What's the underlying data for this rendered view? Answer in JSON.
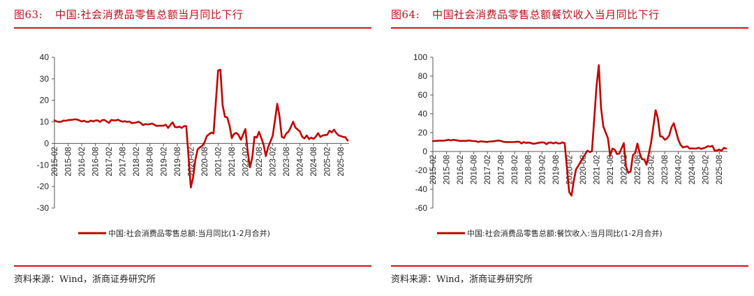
{
  "colors": {
    "accent": "#b5121b",
    "rule": "#d0101a",
    "series": "#c00000",
    "axis": "#555555"
  },
  "figures": [
    {
      "id": "fig63",
      "number": "图63:",
      "title": "中国:社会消费品零售总额当月同比下行",
      "source": "资料来源：Wind，浙商证券研究所",
      "legend": "中国:社会消费品零售总额:当月同比(1-2月合并)"
    },
    {
      "id": "fig64",
      "number": "图64:",
      "title": "中国社会消费品零售总额餐饮收入当月同比下行",
      "source": "资料来源：Wind，浙商证券研究所",
      "legend": "中国:社会消费品零售总额:餐饮收入:当月同比(1-2月合并)"
    }
  ],
  "chart_data": [
    {
      "type": "line",
      "title": "中国:社会消费品零售总额当月同比下行",
      "xlabel": "",
      "ylabel": "",
      "ylim": [
        -30,
        40
      ],
      "yticks": [
        40,
        30,
        20,
        10,
        0,
        -10,
        -20,
        -30
      ],
      "xticks": [
        "2015-02",
        "2015-08",
        "2016-02",
        "2016-08",
        "2017-02",
        "2017-08",
        "2018-02",
        "2018-08",
        "2019-02",
        "2019-08",
        "2020-02",
        "2020-08",
        "2021-02",
        "2021-08",
        "2022-02",
        "2022-08",
        "2023-02",
        "2023-08",
        "2024-02",
        "2024-08",
        "2025-02",
        "2025-08"
      ],
      "grid": false,
      "legend_position": "bottom",
      "series": [
        {
          "name": "中国:社会消费品零售总额:当月同比(1-2月合并)",
          "points": [
            [
              "2015-02",
              10.7
            ],
            [
              "2015-03",
              10.2
            ],
            [
              "2015-04",
              10.0
            ],
            [
              "2015-05",
              10.1
            ],
            [
              "2015-06",
              10.6
            ],
            [
              "2015-07",
              10.5
            ],
            [
              "2015-08",
              10.8
            ],
            [
              "2015-09",
              10.9
            ],
            [
              "2015-10",
              11.0
            ],
            [
              "2015-11",
              11.2
            ],
            [
              "2015-12",
              11.1
            ],
            [
              "2016-02",
              10.2
            ],
            [
              "2016-03",
              10.5
            ],
            [
              "2016-04",
              10.1
            ],
            [
              "2016-05",
              10.0
            ],
            [
              "2016-06",
              10.6
            ],
            [
              "2016-07",
              10.2
            ],
            [
              "2016-08",
              10.6
            ],
            [
              "2016-09",
              10.7
            ],
            [
              "2016-10",
              10.0
            ],
            [
              "2016-11",
              10.8
            ],
            [
              "2016-12",
              10.9
            ],
            [
              "2017-02",
              9.5
            ],
            [
              "2017-03",
              10.9
            ],
            [
              "2017-04",
              10.7
            ],
            [
              "2017-05",
              10.7
            ],
            [
              "2017-06",
              11.0
            ],
            [
              "2017-07",
              10.4
            ],
            [
              "2017-08",
              10.1
            ],
            [
              "2017-09",
              10.3
            ],
            [
              "2017-10",
              10.0
            ],
            [
              "2017-11",
              10.2
            ],
            [
              "2017-12",
              9.4
            ],
            [
              "2018-02",
              9.7
            ],
            [
              "2018-03",
              10.1
            ],
            [
              "2018-04",
              9.4
            ],
            [
              "2018-05",
              8.5
            ],
            [
              "2018-06",
              9.0
            ],
            [
              "2018-07",
              8.8
            ],
            [
              "2018-08",
              9.0
            ],
            [
              "2018-09",
              9.2
            ],
            [
              "2018-10",
              8.6
            ],
            [
              "2018-11",
              8.1
            ],
            [
              "2018-12",
              8.2
            ],
            [
              "2019-02",
              8.2
            ],
            [
              "2019-03",
              8.7
            ],
            [
              "2019-04",
              7.2
            ],
            [
              "2019-05",
              8.6
            ],
            [
              "2019-06",
              9.8
            ],
            [
              "2019-07",
              7.6
            ],
            [
              "2019-08",
              7.5
            ],
            [
              "2019-09",
              7.8
            ],
            [
              "2019-10",
              7.2
            ],
            [
              "2019-11",
              8.0
            ],
            [
              "2019-12",
              8.0
            ],
            [
              "2020-02",
              -20.5
            ],
            [
              "2020-03",
              -15.8
            ],
            [
              "2020-04",
              -7.5
            ],
            [
              "2020-05",
              -2.8
            ],
            [
              "2020-06",
              -1.8
            ],
            [
              "2020-07",
              -1.1
            ],
            [
              "2020-08",
              0.5
            ],
            [
              "2020-09",
              3.3
            ],
            [
              "2020-10",
              4.3
            ],
            [
              "2020-11",
              5.0
            ],
            [
              "2020-12",
              4.6
            ],
            [
              "2021-02",
              33.8
            ],
            [
              "2021-03",
              34.2
            ],
            [
              "2021-04",
              17.7
            ],
            [
              "2021-05",
              12.4
            ],
            [
              "2021-06",
              12.1
            ],
            [
              "2021-07",
              8.5
            ],
            [
              "2021-08",
              2.5
            ],
            [
              "2021-09",
              4.4
            ],
            [
              "2021-10",
              4.9
            ],
            [
              "2021-11",
              3.9
            ],
            [
              "2021-12",
              1.7
            ],
            [
              "2022-02",
              6.7
            ],
            [
              "2022-03",
              -3.5
            ],
            [
              "2022-04",
              -11.1
            ],
            [
              "2022-05",
              -6.7
            ],
            [
              "2022-06",
              3.1
            ],
            [
              "2022-07",
              2.7
            ],
            [
              "2022-08",
              5.4
            ],
            [
              "2022-09",
              2.5
            ],
            [
              "2022-10",
              -0.5
            ],
            [
              "2022-11",
              -5.9
            ],
            [
              "2022-12",
              -1.8
            ],
            [
              "2023-02",
              3.5
            ],
            [
              "2023-03",
              10.6
            ],
            [
              "2023-04",
              18.4
            ],
            [
              "2023-05",
              12.7
            ],
            [
              "2023-06",
              3.1
            ],
            [
              "2023-07",
              2.5
            ],
            [
              "2023-08",
              4.6
            ],
            [
              "2023-09",
              5.5
            ],
            [
              "2023-10",
              7.6
            ],
            [
              "2023-11",
              10.1
            ],
            [
              "2023-12",
              7.4
            ],
            [
              "2024-02",
              5.5
            ],
            [
              "2024-03",
              3.1
            ],
            [
              "2024-04",
              2.3
            ],
            [
              "2024-05",
              3.7
            ],
            [
              "2024-06",
              2.0
            ],
            [
              "2024-07",
              2.7
            ],
            [
              "2024-08",
              2.1
            ],
            [
              "2024-09",
              3.2
            ],
            [
              "2024-10",
              4.8
            ],
            [
              "2024-11",
              3.0
            ],
            [
              "2024-12",
              3.7
            ],
            [
              "2025-02",
              4.0
            ],
            [
              "2025-03",
              5.9
            ],
            [
              "2025-04",
              5.1
            ],
            [
              "2025-05",
              6.4
            ],
            [
              "2025-06",
              4.8
            ],
            [
              "2025-07",
              3.7
            ],
            [
              "2025-08",
              3.4
            ],
            [
              "2025-09",
              3.0
            ],
            [
              "2025-10",
              2.9
            ],
            [
              "2025-11",
              1.3
            ]
          ]
        }
      ]
    },
    {
      "type": "line",
      "title": "中国社会消费品零售总额餐饮收入当月同比下行",
      "xlabel": "",
      "ylabel": "",
      "ylim": [
        -60,
        100
      ],
      "yticks": [
        100,
        80,
        60,
        40,
        20,
        0,
        -20,
        -40,
        -60
      ],
      "xticks": [
        "2015-02",
        "2015-08",
        "2016-02",
        "2016-08",
        "2017-02",
        "2017-08",
        "2018-02",
        "2018-08",
        "2019-02",
        "2019-08",
        "2020-02",
        "2020-08",
        "2021-02",
        "2021-08",
        "2022-02",
        "2022-08",
        "2023-02",
        "2023-08",
        "2024-02",
        "2024-08",
        "2025-02",
        "2025-08"
      ],
      "grid": false,
      "legend_position": "bottom",
      "series": [
        {
          "name": "中国:社会消费品零售总额:餐饮收入:当月同比(1-2月合并)",
          "points": [
            [
              "2015-02",
              11.1
            ],
            [
              "2015-03",
              11.2
            ],
            [
              "2015-04",
              11.3
            ],
            [
              "2015-05",
              11.5
            ],
            [
              "2015-06",
              11.4
            ],
            [
              "2015-07",
              11.5
            ],
            [
              "2015-08",
              12.0
            ],
            [
              "2015-09",
              12.4
            ],
            [
              "2015-10",
              11.8
            ],
            [
              "2015-11",
              12.4
            ],
            [
              "2015-12",
              12.1
            ],
            [
              "2016-02",
              11.1
            ],
            [
              "2016-03",
              11.3
            ],
            [
              "2016-04",
              11.2
            ],
            [
              "2016-05",
              11.4
            ],
            [
              "2016-06",
              11.7
            ],
            [
              "2016-07",
              11.2
            ],
            [
              "2016-08",
              11.1
            ],
            [
              "2016-09",
              10.9
            ],
            [
              "2016-10",
              10.1
            ],
            [
              "2016-11",
              10.8
            ],
            [
              "2016-12",
              10.6
            ],
            [
              "2017-02",
              10.1
            ],
            [
              "2017-03",
              10.6
            ],
            [
              "2017-04",
              10.7
            ],
            [
              "2017-05",
              11.0
            ],
            [
              "2017-06",
              11.3
            ],
            [
              "2017-07",
              11.6
            ],
            [
              "2017-08",
              11.2
            ],
            [
              "2017-09",
              10.3
            ],
            [
              "2017-10",
              10.0
            ],
            [
              "2017-11",
              10.1
            ],
            [
              "2017-12",
              10.0
            ],
            [
              "2018-02",
              10.1
            ],
            [
              "2018-03",
              10.3
            ],
            [
              "2018-04",
              10.4
            ],
            [
              "2018-05",
              8.6
            ],
            [
              "2018-06",
              10.0
            ],
            [
              "2018-07",
              9.1
            ],
            [
              "2018-08",
              9.5
            ],
            [
              "2018-09",
              9.1
            ],
            [
              "2018-10",
              8.2
            ],
            [
              "2018-11",
              8.4
            ],
            [
              "2018-12",
              9.0
            ],
            [
              "2019-02",
              9.7
            ],
            [
              "2019-03",
              9.5
            ],
            [
              "2019-04",
              7.7
            ],
            [
              "2019-05",
              9.4
            ],
            [
              "2019-06",
              9.5
            ],
            [
              "2019-07",
              8.6
            ],
            [
              "2019-08",
              9.6
            ],
            [
              "2019-09",
              8.7
            ],
            [
              "2019-10",
              8.6
            ],
            [
              "2019-11",
              9.6
            ],
            [
              "2019-12",
              8.9
            ],
            [
              "2020-02",
              -43.1
            ],
            [
              "2020-03",
              -46.8
            ],
            [
              "2020-04",
              -31.1
            ],
            [
              "2020-05",
              -18.9
            ],
            [
              "2020-06",
              -15.2
            ],
            [
              "2020-07",
              -11.0
            ],
            [
              "2020-08",
              -7.0
            ],
            [
              "2020-09",
              -2.9
            ],
            [
              "2020-10",
              0.8
            ],
            [
              "2020-11",
              -0.6
            ],
            [
              "2020-12",
              0.4
            ],
            [
              "2021-02",
              68.9
            ],
            [
              "2021-03",
              91.6
            ],
            [
              "2021-04",
              46.4
            ],
            [
              "2021-05",
              26.6
            ],
            [
              "2021-06",
              20.4
            ],
            [
              "2021-07",
              14.3
            ],
            [
              "2021-08",
              -4.5
            ],
            [
              "2021-09",
              3.1
            ],
            [
              "2021-10",
              2.0
            ],
            [
              "2021-11",
              -2.7
            ],
            [
              "2021-12",
              -2.3
            ],
            [
              "2022-02",
              8.9
            ],
            [
              "2022-03",
              -16.4
            ],
            [
              "2022-04",
              -22.7
            ],
            [
              "2022-05",
              -21.1
            ],
            [
              "2022-06",
              -4.0
            ],
            [
              "2022-07",
              -1.5
            ],
            [
              "2022-08",
              8.4
            ],
            [
              "2022-09",
              -1.7
            ],
            [
              "2022-10",
              -8.1
            ],
            [
              "2022-11",
              -8.4
            ],
            [
              "2022-12",
              -14.1
            ],
            [
              "2023-02",
              9.2
            ],
            [
              "2023-03",
              26.3
            ],
            [
              "2023-04",
              43.8
            ],
            [
              "2023-05",
              35.1
            ],
            [
              "2023-06",
              16.1
            ],
            [
              "2023-07",
              15.8
            ],
            [
              "2023-08",
              12.4
            ],
            [
              "2023-09",
              13.8
            ],
            [
              "2023-10",
              17.1
            ],
            [
              "2023-11",
              25.8
            ],
            [
              "2023-12",
              30.0
            ],
            [
              "2024-02",
              12.5
            ],
            [
              "2024-03",
              6.9
            ],
            [
              "2024-04",
              4.4
            ],
            [
              "2024-05",
              5.0
            ],
            [
              "2024-06",
              5.4
            ],
            [
              "2024-07",
              3.0
            ],
            [
              "2024-08",
              3.3
            ],
            [
              "2024-09",
              3.1
            ],
            [
              "2024-10",
              3.2
            ],
            [
              "2024-11",
              4.0
            ],
            [
              "2024-12",
              2.7
            ],
            [
              "2025-02",
              4.3
            ],
            [
              "2025-03",
              5.6
            ],
            [
              "2025-04",
              5.2
            ],
            [
              "2025-05",
              5.9
            ],
            [
              "2025-06",
              0.9
            ],
            [
              "2025-07",
              1.1
            ],
            [
              "2025-08",
              2.1
            ],
            [
              "2025-09",
              0.9
            ],
            [
              "2025-10",
              3.8
            ],
            [
              "2025-11",
              3.2
            ]
          ]
        }
      ]
    }
  ]
}
